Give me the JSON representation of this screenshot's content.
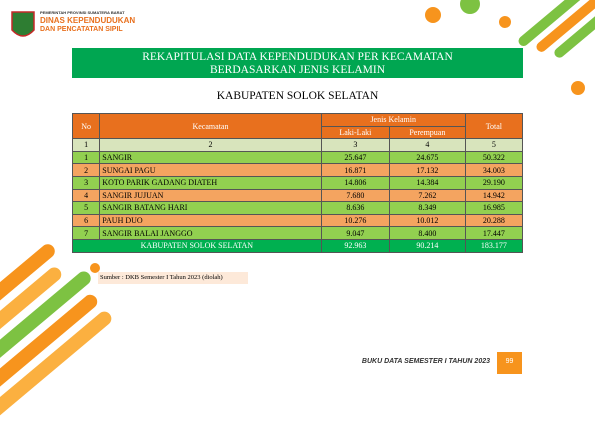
{
  "header": {
    "org_small": "PEMERINTAH PROVINSI SUMATERA BARAT",
    "org": "DINAS KEPENDUDUKAN",
    "org2": "DAN PENCATATAN SIPIL"
  },
  "title": [
    "REKAPITULASI DATA KEPENDUDUKAN PER KECAMATAN",
    "BERDASARKAN JENIS KELAMIN"
  ],
  "subtitle": "KABUPATEN SOLOK SELATAN",
  "table": {
    "headers": {
      "no": "No",
      "kecamatan": "Kecamatan",
      "jenis_kelamin": "Jenis Kelamin",
      "laki": "Laki-Laki",
      "perempuan": "Perempuan",
      "total": "Total"
    },
    "column_numbers": [
      "1",
      "2",
      "3",
      "4",
      "5"
    ],
    "rows": [
      [
        "1",
        "SANGIR",
        "25.647",
        "24.675",
        "50.322"
      ],
      [
        "2",
        "SUNGAI PAGU",
        "16.871",
        "17.132",
        "34.003"
      ],
      [
        "3",
        "KOTO PARIK GADANG DIATEH",
        "14.806",
        "14.384",
        "29.190"
      ],
      [
        "4",
        "SANGIR JUJUAN",
        "7.680",
        "7.262",
        "14.942"
      ],
      [
        "5",
        "SANGIR BATANG HARI",
        "8.636",
        "8.349",
        "16.985"
      ],
      [
        "6",
        "PAUH DUO",
        "10.276",
        "10.012",
        "20.288"
      ],
      [
        "7",
        "SANGIR BALAI JANGGO",
        "9.047",
        "8.400",
        "17.447"
      ]
    ],
    "total": [
      "KABUPATEN SOLOK SELATAN",
      "92.963",
      "90.214",
      "183.177"
    ]
  },
  "source": "Sumber : DKB Semester I Tahun 2023 (diolah)",
  "footer": {
    "text": "BUKU DATA SEMESTER I TAHUN 2023",
    "page": "99"
  }
}
